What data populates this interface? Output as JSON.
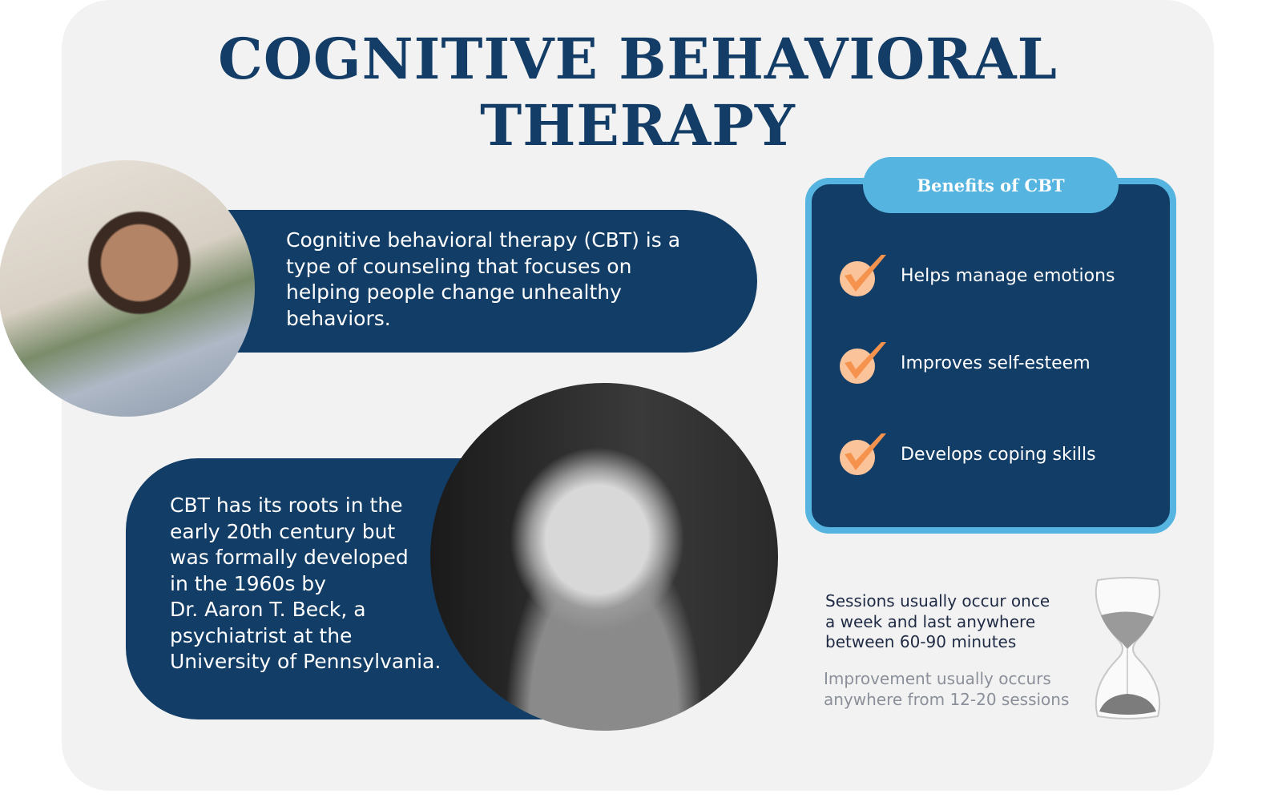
{
  "title": "COGNITIVE BEHAVIORAL THERAPY",
  "intro": "Cognitive behavioral therapy (CBT) is a type of counseling that focuses on helping people change unhealthy behaviors.",
  "history": "CBT  has its roots in the\nearly 20th century but\nwas formally developed\nin the 1960s by\nDr. Aaron T. Beck, a\npsychiatrist at the\nUniversity of Pennsylvania.",
  "benefits": {
    "heading": "Benefits of CBT",
    "items": [
      {
        "label": "Helps manage emotions",
        "icon": "check-icon"
      },
      {
        "label": "Improves self-esteem",
        "icon": "check-icon"
      },
      {
        "label": "Develops coping skills",
        "icon": "check-icon"
      }
    ]
  },
  "sessions": "Sessions usually occur once\na week and last anywhere\nbetween 60-90 minutes",
  "improvement": "Improvement usually occurs\nanywhere from 12-20 sessions",
  "colors": {
    "navy": "#123d66",
    "accent": "#55b4e0",
    "check": "#f5934e"
  }
}
